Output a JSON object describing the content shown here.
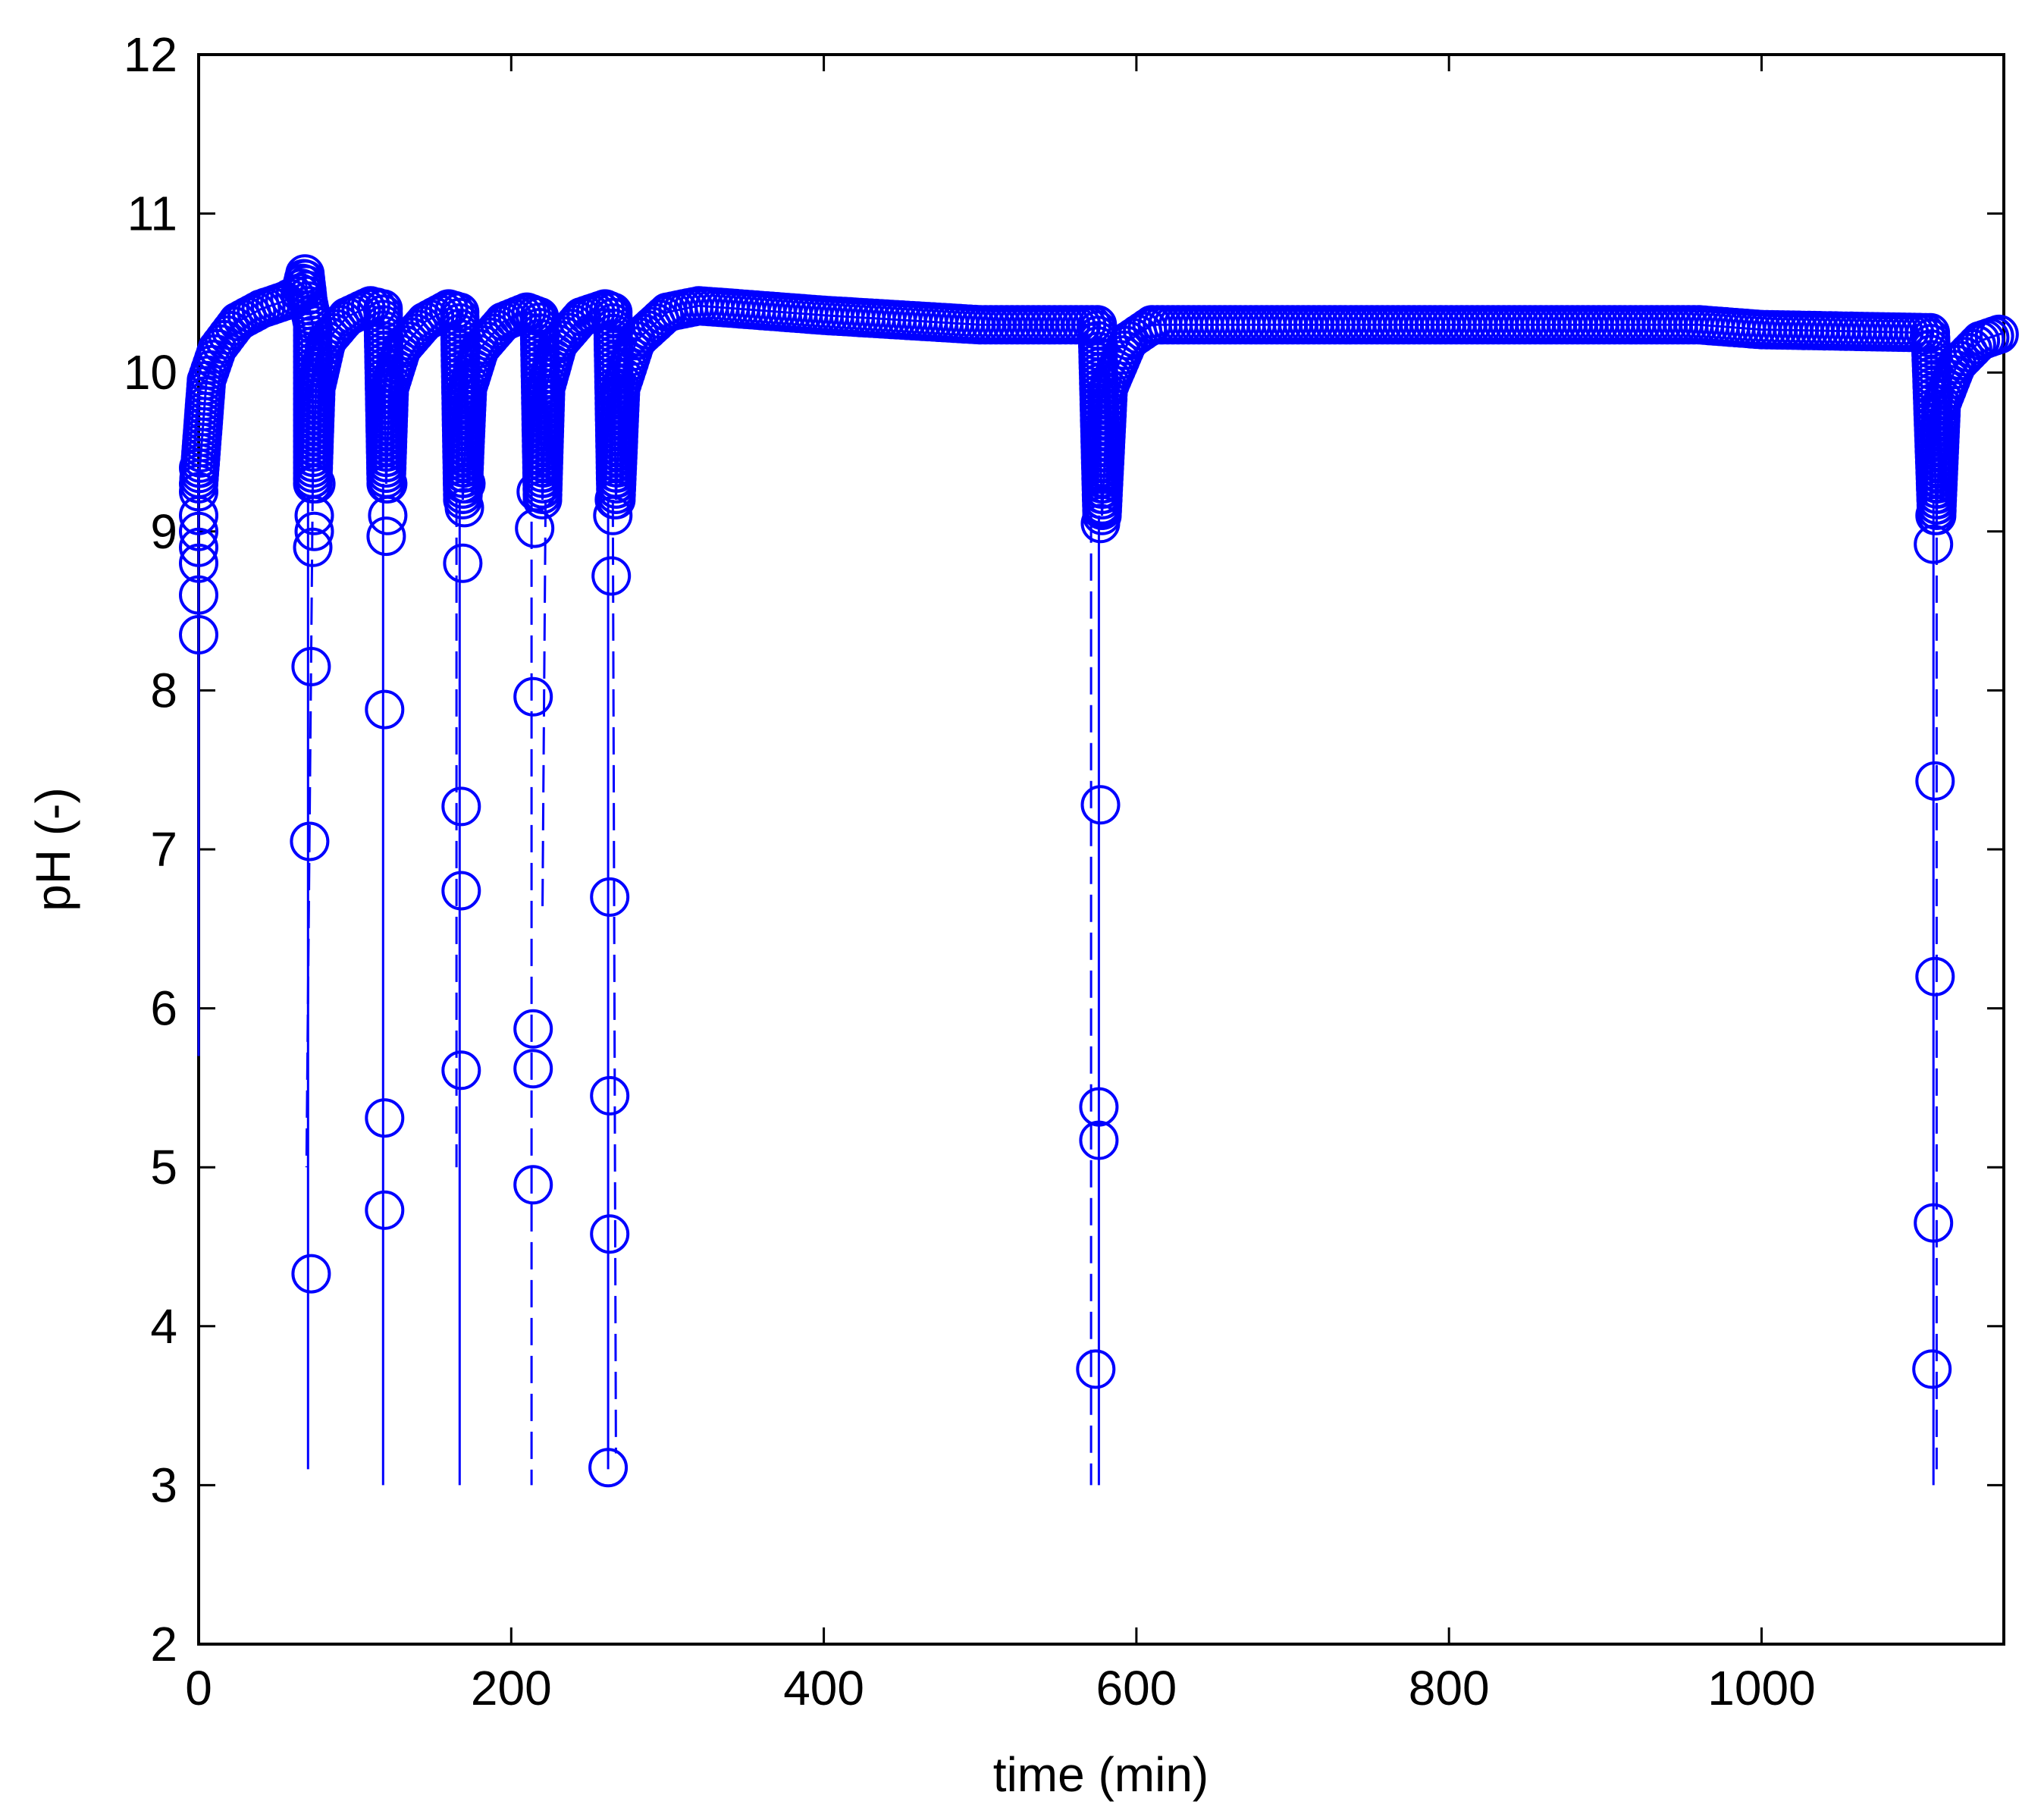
{
  "chart_data": {
    "type": "line",
    "title": "",
    "xlabel": "time (min)",
    "ylabel": "pH (-)",
    "xlim": [
      0,
      1155
    ],
    "ylim": [
      2,
      12
    ],
    "x_ticks": [
      0,
      200,
      400,
      600,
      800,
      1000
    ],
    "y_ticks": [
      2,
      3,
      4,
      5,
      6,
      7,
      8,
      9,
      10,
      11,
      12
    ],
    "grid": false,
    "color": "#0000ff",
    "series": [
      {
        "style": "solid",
        "segments": [
          [
            [
              0,
              9.4
            ],
            [
              0,
              5.7
            ]
          ],
          [
            [
              70,
              9.2
            ],
            [
              70,
              3.1
            ]
          ],
          [
            [
              118,
              9.3
            ],
            [
              118,
              3.0
            ]
          ],
          [
            [
              167,
              9.2
            ],
            [
              167,
              3.0
            ]
          ],
          [
            [
              262,
              9.2
            ],
            [
              262,
              3.1
            ]
          ],
          [
            [
              576,
              9.1
            ],
            [
              576,
              3.0
            ]
          ],
          [
            [
              1110,
              9.2
            ],
            [
              1110,
              3.0
            ]
          ]
        ]
      },
      {
        "style": "dashed",
        "segments": [
          [
            [
              73,
              9.3
            ],
            [
              69,
              5.0
            ]
          ],
          [
            [
              165,
              9.2
            ],
            [
              165,
              5.0
            ]
          ],
          [
            [
              213,
              9.3
            ],
            [
              213,
              3.0
            ]
          ],
          [
            [
              222,
              9.2
            ],
            [
              220,
              6.6
            ]
          ],
          [
            [
              265,
              9.2
            ],
            [
              267,
              3.2
            ]
          ],
          [
            [
              571,
              9.1
            ],
            [
              571,
              3.0
            ]
          ],
          [
            [
              1112,
              9.2
            ],
            [
              1112,
              3.1
            ]
          ]
        ]
      },
      {
        "style": "solid",
        "segments": [
          [
            [
              0,
              9.3
            ],
            [
              5,
              9.95
            ],
            [
              12,
              10.15
            ],
            [
              25,
              10.32
            ],
            [
              40,
              10.4
            ],
            [
              55,
              10.45
            ],
            [
              65,
              10.5
            ],
            [
              68,
              10.62
            ],
            [
              70,
              10.45
            ],
            [
              73,
              10.3
            ],
            [
              73,
              9.3
            ]
          ],
          [
            [
              73,
              9.3
            ],
            [
              75,
              9.9
            ],
            [
              82,
              10.2
            ],
            [
              95,
              10.35
            ],
            [
              110,
              10.42
            ],
            [
              118,
              10.4
            ],
            [
              120,
              9.3
            ]
          ],
          [
            [
              120,
              9.3
            ],
            [
              122,
              9.9
            ],
            [
              130,
              10.15
            ],
            [
              145,
              10.32
            ],
            [
              160,
              10.4
            ],
            [
              167,
              10.38
            ],
            [
              169,
              9.2
            ]
          ],
          [
            [
              169,
              9.2
            ],
            [
              172,
              9.9
            ],
            [
              180,
              10.15
            ],
            [
              195,
              10.32
            ],
            [
              210,
              10.38
            ],
            [
              218,
              10.35
            ],
            [
              220,
              9.2
            ]
          ],
          [
            [
              220,
              9.2
            ],
            [
              222,
              9.9
            ],
            [
              230,
              10.18
            ],
            [
              245,
              10.35
            ],
            [
              260,
              10.4
            ],
            [
              265,
              10.38
            ],
            [
              267,
              9.2
            ]
          ],
          [
            [
              267,
              9.2
            ],
            [
              270,
              9.9
            ],
            [
              280,
              10.2
            ],
            [
              300,
              10.38
            ],
            [
              320,
              10.42
            ],
            [
              400,
              10.36
            ],
            [
              500,
              10.3
            ],
            [
              575,
              10.3
            ],
            [
              578,
              9.1
            ]
          ],
          [
            [
              578,
              9.1
            ],
            [
              582,
              9.9
            ],
            [
              595,
              10.2
            ],
            [
              610,
              10.3
            ],
            [
              700,
              10.3
            ],
            [
              960,
              10.3
            ],
            [
              1000,
              10.27
            ],
            [
              1108,
              10.25
            ],
            [
              1112,
              9.1
            ]
          ],
          [
            [
              1112,
              9.1
            ],
            [
              1115,
              9.8
            ],
            [
              1125,
              10.05
            ],
            [
              1140,
              10.2
            ],
            [
              1155,
              10.25
            ]
          ]
        ]
      }
    ],
    "markers": [
      [
        0,
        8.35
      ],
      [
        0,
        8.6
      ],
      [
        0,
        8.8
      ],
      [
        0,
        8.9
      ],
      [
        0,
        9.0
      ],
      [
        0,
        9.1
      ],
      [
        0,
        9.25
      ],
      [
        0,
        9.4
      ],
      [
        72,
        4.33
      ],
      [
        71,
        7.05
      ],
      [
        72,
        8.15
      ],
      [
        73,
        8.9
      ],
      [
        74,
        9.0
      ],
      [
        74,
        9.1
      ],
      [
        75,
        9.3
      ],
      [
        119,
        4.73
      ],
      [
        119,
        5.31
      ],
      [
        119,
        7.88
      ],
      [
        120,
        8.97
      ],
      [
        121,
        9.1
      ],
      [
        121,
        9.3
      ],
      [
        168,
        5.61
      ],
      [
        168,
        6.74
      ],
      [
        168,
        7.27
      ],
      [
        169,
        8.8
      ],
      [
        170,
        9.15
      ],
      [
        171,
        9.3
      ],
      [
        214,
        4.89
      ],
      [
        214,
        5.62
      ],
      [
        214,
        5.87
      ],
      [
        214,
        7.96
      ],
      [
        215,
        9.02
      ],
      [
        216,
        9.25
      ],
      [
        262,
        3.11
      ],
      [
        263,
        4.58
      ],
      [
        263,
        5.45
      ],
      [
        263,
        6.7
      ],
      [
        264,
        8.72
      ],
      [
        265,
        9.1
      ],
      [
        266,
        9.2
      ],
      [
        574,
        3.73
      ],
      [
        576,
        5.17
      ],
      [
        576,
        5.38
      ],
      [
        577,
        7.28
      ],
      [
        577,
        9.05
      ],
      [
        578,
        9.15
      ],
      [
        1109,
        3.73
      ],
      [
        1110,
        4.65
      ],
      [
        1111,
        6.2
      ],
      [
        1111,
        7.43
      ],
      [
        1110,
        8.92
      ],
      [
        1111,
        9.1
      ],
      [
        1112,
        9.3
      ]
    ]
  }
}
